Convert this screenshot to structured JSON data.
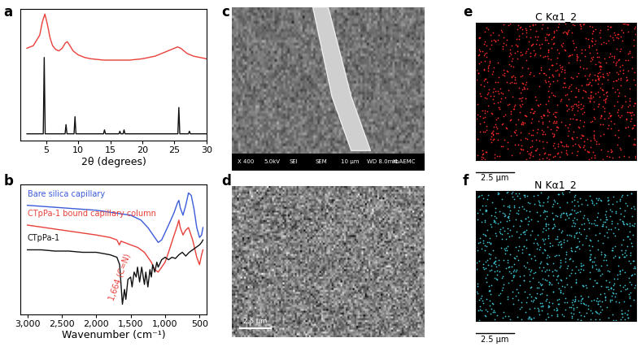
{
  "chart_data": [
    {
      "panel_label": "a",
      "type": "line",
      "x_label": "2θ (degrees)",
      "xlim": [
        1,
        30
      ],
      "xticks": [
        5,
        10,
        15,
        20,
        25,
        30
      ],
      "ylim": [
        0,
        100
      ],
      "tick_labels": "x",
      "series": [
        {
          "color": "#e8403a",
          "x": [
            2,
            3,
            4,
            4.4,
            4.8,
            5.2,
            5.6,
            6,
            6.5,
            7,
            7.5,
            8,
            8.3,
            8.7,
            9.2,
            10,
            11,
            12,
            14,
            16,
            18,
            20,
            22,
            23,
            24,
            25,
            25.5,
            26,
            27,
            28,
            29,
            30
          ],
          "values": [
            70,
            72,
            80,
            90,
            96,
            88,
            78,
            72,
            69,
            68,
            70,
            74,
            75,
            72,
            68,
            65,
            63,
            62,
            61,
            61,
            61,
            62,
            64,
            66,
            68,
            70,
            71,
            70,
            66,
            64,
            63,
            62
          ]
        },
        {
          "color": "#111111",
          "x": [
            2,
            4.55,
            4.7,
            4.85,
            7.95,
            8.1,
            8.25,
            9.35,
            9.5,
            9.65,
            13.95,
            14.1,
            14.25,
            16.35,
            16.5,
            16.65,
            17.0,
            17.15,
            17.3,
            25.55,
            25.7,
            25.85,
            27.2,
            27.35,
            27.5,
            30
          ],
          "values": [
            5,
            5,
            63,
            5,
            5,
            12,
            5,
            5,
            18,
            5,
            5,
            8,
            5,
            5,
            7,
            5,
            5,
            8,
            5,
            5,
            25,
            5,
            5,
            7,
            5,
            5
          ]
        }
      ]
    },
    {
      "panel_label": "b",
      "type": "line",
      "x_label": "Wavenumber (cm⁻¹)",
      "xlim": [
        3100,
        400
      ],
      "xticks": [
        {
          "value": 3000,
          "label": "3,000"
        },
        {
          "value": 2500,
          "label": "2,500"
        },
        {
          "value": 2000,
          "label": "2,000"
        },
        {
          "value": 1500,
          "label": "1,500"
        },
        {
          "value": 1000,
          "label": "1,000"
        },
        500
      ],
      "ylim": [
        0,
        105
      ],
      "tick_labels": "x",
      "annotation": {
        "text": "1,664 (C=N)",
        "x": 1664,
        "y": 30,
        "color": "#e8403a"
      },
      "series": [
        {
          "name": "Bare silica capillary",
          "color": "#3b5bdb",
          "x": [
            3000,
            2750,
            2500,
            2250,
            2000,
            1750,
            1500,
            1350,
            1250,
            1150,
            1100,
            1050,
            950,
            870,
            820,
            800,
            780,
            740,
            700,
            660,
            620,
            580,
            540,
            500,
            470,
            450
          ],
          "values": [
            88,
            87,
            86,
            85,
            84,
            82,
            80,
            76,
            70,
            62,
            58,
            60,
            72,
            82,
            90,
            92,
            86,
            80,
            88,
            98,
            96,
            85,
            70,
            62,
            64,
            70
          ]
        },
        {
          "name": "CTpPa-1 bound capillary column",
          "color": "#e8403a",
          "x": [
            3000,
            2750,
            2500,
            2250,
            2000,
            1800,
            1700,
            1664,
            1640,
            1500,
            1400,
            1300,
            1200,
            1150,
            1100,
            1050,
            1000,
            950,
            880,
            820,
            800,
            780,
            740,
            700,
            660,
            600,
            540,
            500,
            470,
            450
          ],
          "values": [
            72,
            70,
            68,
            66,
            64,
            62,
            60,
            56,
            59,
            56,
            54,
            50,
            42,
            36,
            34,
            38,
            42,
            50,
            62,
            72,
            76,
            70,
            64,
            68,
            70,
            60,
            46,
            40,
            48,
            52
          ]
        },
        {
          "name": "CTpPa-1",
          "color": "#111111",
          "x": [
            3000,
            2800,
            2600,
            2400,
            2200,
            2000,
            1800,
            1700,
            1660,
            1620,
            1590,
            1570,
            1540,
            1500,
            1480,
            1450,
            1420,
            1400,
            1370,
            1340,
            1300,
            1280,
            1250,
            1220,
            1200,
            1180,
            1150,
            1120,
            1100,
            1050,
            1000,
            950,
            900,
            850,
            800,
            750,
            700,
            650,
            600,
            550,
            500,
            470,
            450
          ],
          "values": [
            52,
            52,
            51,
            51,
            50,
            50,
            48,
            46,
            40,
            8,
            20,
            12,
            28,
            30,
            22,
            34,
            30,
            38,
            26,
            38,
            24,
            34,
            22,
            36,
            30,
            40,
            34,
            42,
            38,
            44,
            46,
            44,
            46,
            45,
            48,
            50,
            47,
            50,
            52,
            54,
            56,
            58,
            60
          ]
        }
      ]
    }
  ],
  "images": [
    {
      "panel_label": "c",
      "type": "sem",
      "info_bar": [
        "X 400",
        "5.0kV",
        "SEI",
        "SEM",
        "10 µm",
        "WD 8.0mm",
        "KLAEMC"
      ]
    },
    {
      "panel_label": "d",
      "type": "sem",
      "scale_bar": "2.5 µm"
    },
    {
      "panel_label": "e",
      "type": "eds_map",
      "title": "C Kα1_2",
      "color": "#ff2a2a",
      "scale_bar": "2.5 µm"
    },
    {
      "panel_label": "f",
      "type": "eds_map",
      "title": "N Kα1_2",
      "color": "#3ec8d8",
      "scale_bar": "2.5 µm"
    }
  ]
}
